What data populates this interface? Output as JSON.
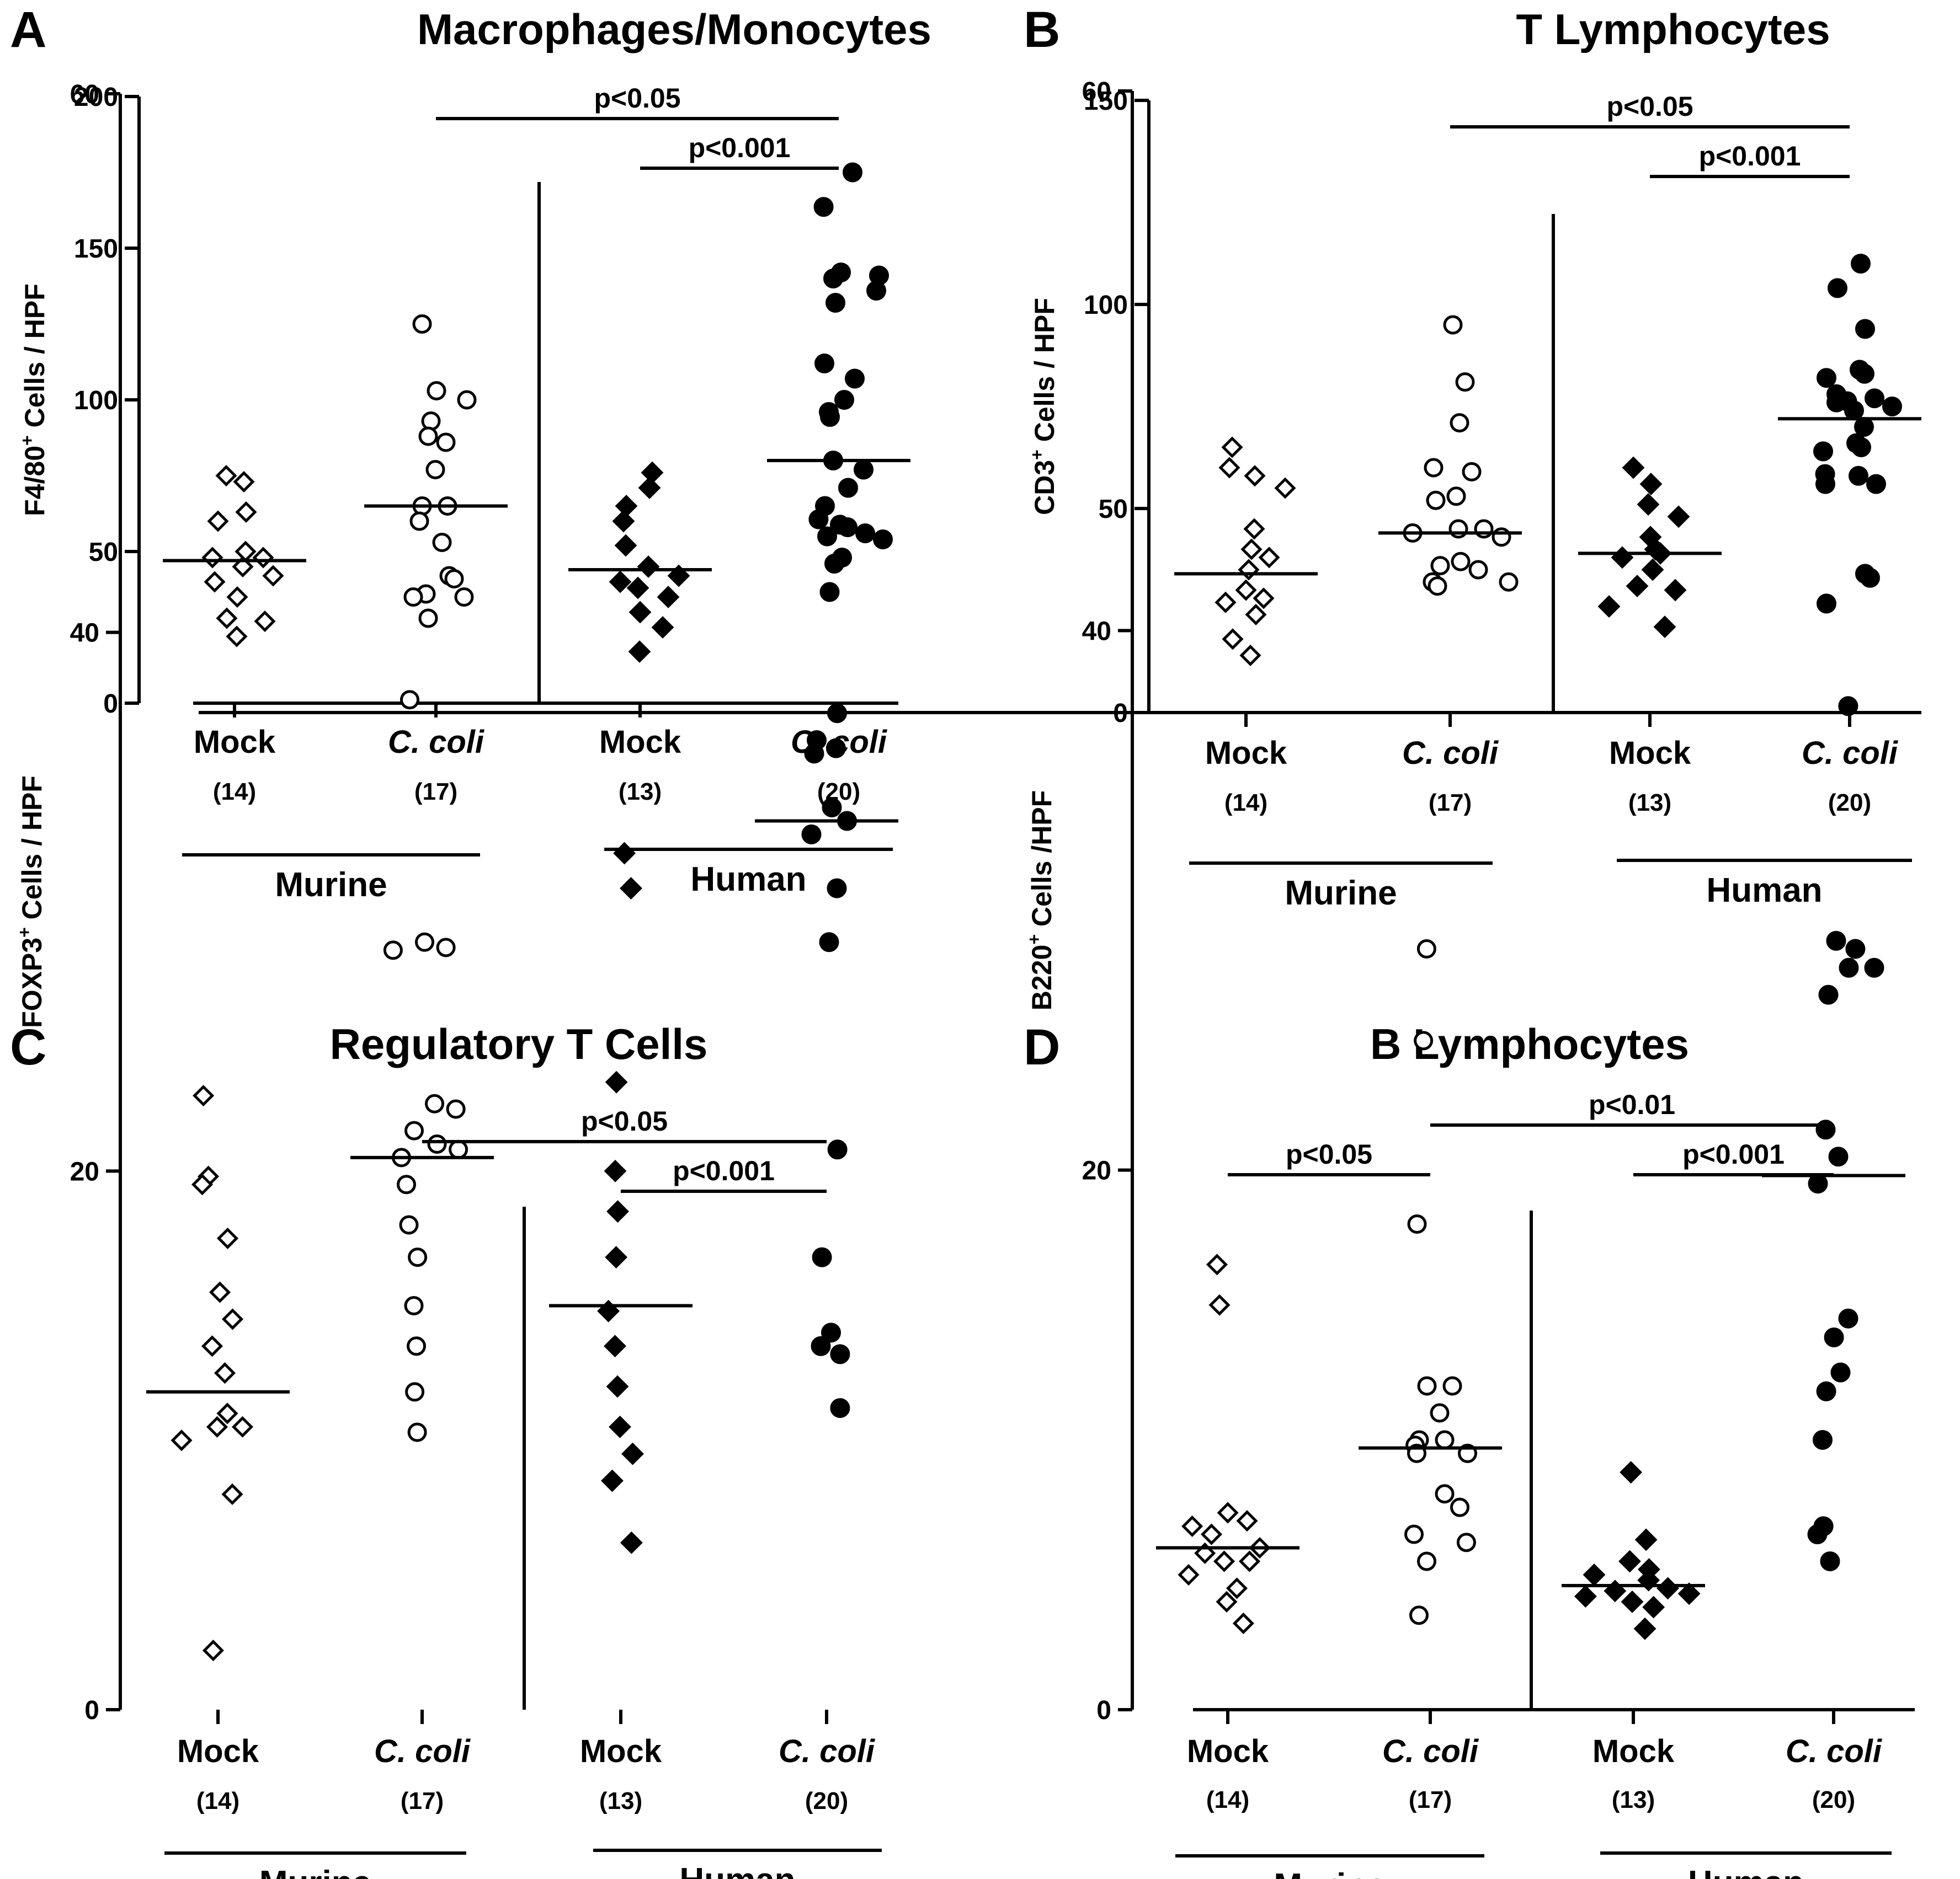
{
  "figure": {
    "panels_count": 4
  },
  "chart_data": [
    {
      "panel_letter": "A",
      "type": "scatter",
      "title": "Macrophages/Monocytes",
      "ylabel_pre": "F4/80",
      "ylabel_sup": "+",
      "ylabel_post": " Cells / HPF",
      "ylim": [
        0,
        200
      ],
      "yticks": [
        0,
        50,
        100,
        150,
        200
      ],
      "groups": [
        {
          "label": "Mock",
          "italic": false,
          "n": "(14)",
          "marker": "open-diamond",
          "median": 47,
          "points": [
            75,
            73,
            63,
            60,
            50,
            48,
            48,
            45,
            42,
            40,
            35,
            28,
            27,
            22
          ]
        },
        {
          "label": "C. coli",
          "italic": true,
          "n": "(17)",
          "marker": "open-circle",
          "median": 65,
          "points": [
            125,
            103,
            100,
            93,
            88,
            86,
            77,
            65,
            65,
            60,
            53,
            42,
            41,
            36,
            35,
            35,
            28
          ]
        },
        {
          "label": "Mock",
          "italic": false,
          "n": "(13)",
          "marker": "filled-diamond",
          "median": 44,
          "points": [
            76,
            71,
            65,
            60,
            52,
            45,
            42,
            40,
            38,
            35,
            30,
            25,
            17
          ]
        },
        {
          "label": "C. coli",
          "italic": true,
          "n": "(20)",
          "marker": "filled-circle",
          "median": 80,
          "points": [
            175,
            142,
            141,
            140,
            136,
            132,
            112,
            107,
            100,
            96,
            80,
            77,
            71,
            65,
            58,
            56,
            55,
            54,
            48,
            46
          ]
        }
      ],
      "species": [
        "Murine",
        "Human"
      ],
      "comparisons": [
        {
          "from": 1,
          "to": 3,
          "label": "p<0.05"
        },
        {
          "from": 2,
          "to": 3,
          "label": "p<0.001"
        }
      ]
    },
    {
      "panel_letter": "B",
      "type": "scatter",
      "title": "T Lymphocytes",
      "ylabel_pre": "CD3",
      "ylabel_sup": "+",
      "ylabel_post": " Cells / HPF",
      "ylim": [
        0,
        150
      ],
      "yticks": [
        0,
        50,
        100,
        150
      ],
      "groups": [
        {
          "label": "Mock",
          "italic": false,
          "n": "(14)",
          "marker": "open-diamond",
          "median": 34,
          "points": [
            65,
            60,
            58,
            55,
            45,
            40,
            38,
            35,
            30,
            28,
            27,
            24,
            18,
            14
          ]
        },
        {
          "label": "C. coli",
          "italic": true,
          "n": "(17)",
          "marker": "open-circle",
          "median": 44,
          "points": [
            95,
            81,
            71,
            60,
            59,
            53,
            52,
            45,
            45,
            44,
            43,
            37,
            36,
            35,
            32,
            32,
            31
          ]
        },
        {
          "label": "Mock",
          "italic": false,
          "n": "(13)",
          "marker": "filled-diamond",
          "median": 39,
          "points": [
            60,
            56,
            51,
            48,
            43,
            40,
            39,
            38,
            35,
            31,
            30,
            26,
            21
          ]
        },
        {
          "label": "C. coli",
          "italic": true,
          "n": "(20)",
          "marker": "filled-circle",
          "median": 72,
          "points": [
            110,
            104,
            94,
            84,
            83,
            82,
            78,
            77,
            76,
            75,
            74,
            70,
            66,
            65,
            64,
            58,
            56,
            56,
            34,
            33
          ]
        }
      ],
      "species": [
        "Murine",
        "Human"
      ],
      "comparisons": [
        {
          "from": 1,
          "to": 3,
          "label": "p<0.05"
        },
        {
          "from": 2,
          "to": 3,
          "label": "p<0.001"
        }
      ]
    },
    {
      "panel_letter": "C",
      "type": "scatter",
      "title": "Regulatory T Cells",
      "ylabel_pre": "FOXP3",
      "ylabel_sup": "+",
      "ylabel_post": " Cells / HPF",
      "ylim": [
        0,
        60
      ],
      "yticks": [
        0,
        20,
        40,
        60
      ],
      "groups": [
        {
          "label": "Mock",
          "italic": false,
          "n": "(14)",
          "marker": "open-diamond",
          "median": 11.8,
          "points": [
            22.8,
            19.8,
            19.5,
            17.5,
            15.5,
            14.5,
            13.5,
            12.5,
            11.0,
            10.5,
            10.5,
            10.0,
            8.0,
            2.2
          ]
        },
        {
          "label": "C. coli",
          "italic": true,
          "n": "(17)",
          "marker": "open-circle",
          "median": 20.5,
          "points": [
            37.5,
            28.5,
            28.3,
            28.2,
            22.5,
            22.3,
            21.5,
            21.0,
            20.8,
            20.5,
            19.5,
            18.0,
            16.8,
            15.0,
            13.5,
            11.8,
            10.3
          ]
        },
        {
          "label": "Mock",
          "italic": false,
          "n": "(13)",
          "marker": "filled-diamond",
          "median": 15,
          "points": [
            31.8,
            30.5,
            23.3,
            20.0,
            18.5,
            16.8,
            14.8,
            13.5,
            12.0,
            10.5,
            9.5,
            8.5,
            6.2
          ]
        },
        {
          "label": "C. coli",
          "italic": true,
          "n": "(20)",
          "marker": "filled-circle",
          "median": 33,
          "points": [
            55.8,
            48.0,
            44.2,
            44.0,
            41.5,
            37.0,
            36.0,
            35.7,
            35.5,
            33.5,
            33.0,
            32.5,
            30.5,
            28.5,
            20.8,
            16.8,
            14.0,
            13.5,
            13.2,
            11.2
          ]
        }
      ],
      "species": [
        "Murine",
        "Human"
      ],
      "comparisons": [
        {
          "from": 1,
          "to": 3,
          "label": "p<0.05"
        },
        {
          "from": 2,
          "to": 3,
          "label": "p<0.001"
        }
      ]
    },
    {
      "panel_letter": "D",
      "type": "scatter",
      "title": "B Lymphocytes",
      "ylabel_pre": "B220",
      "ylabel_sup": "+",
      "ylabel_post": " Cells /HPF",
      "ylim": [
        0,
        60
      ],
      "yticks": [
        0,
        20,
        40,
        60
      ],
      "groups": [
        {
          "label": "Mock",
          "italic": false,
          "n": "(14)",
          "marker": "open-diamond",
          "median": 6,
          "points": [
            16.5,
            15.0,
            7.3,
            7.0,
            6.8,
            6.5,
            6.0,
            5.8,
            5.5,
            5.5,
            5.0,
            4.5,
            4.0,
            3.2
          ]
        },
        {
          "label": "C. coli",
          "italic": true,
          "n": "(17)",
          "marker": "open-circle",
          "median": 9.7,
          "points": [
            28.2,
            24.8,
            18.0,
            12.0,
            12.0,
            11.0,
            10.0,
            10.0,
            9.8,
            9.5,
            9.5,
            8.0,
            7.5,
            6.5,
            6.2,
            5.5,
            3.5
          ]
        },
        {
          "label": "Mock",
          "italic": false,
          "n": "(13)",
          "marker": "filled-diamond",
          "median": 4.6,
          "points": [
            8.8,
            6.3,
            5.5,
            5.2,
            5.0,
            4.8,
            4.5,
            4.4,
            4.3,
            4.2,
            4.0,
            3.8,
            3.0
          ]
        },
        {
          "label": "C. coli",
          "italic": true,
          "n": "(20)",
          "marker": "filled-circle",
          "median": 19.8,
          "points": [
            48.5,
            45.8,
            41.0,
            37.2,
            28.5,
            28.2,
            27.5,
            27.5,
            26.5,
            21.5,
            20.5,
            19.5,
            14.5,
            13.8,
            12.5,
            11.8,
            10.0,
            6.8,
            6.5,
            5.5
          ]
        }
      ],
      "species": [
        "Murine",
        "Human"
      ],
      "comparisons": [
        {
          "from": 0,
          "to": 1,
          "label": "p<0.05"
        },
        {
          "from": 1,
          "to": 3,
          "label": "p<0.01"
        },
        {
          "from": 2,
          "to": 3,
          "label": "p<0.001"
        }
      ]
    }
  ]
}
